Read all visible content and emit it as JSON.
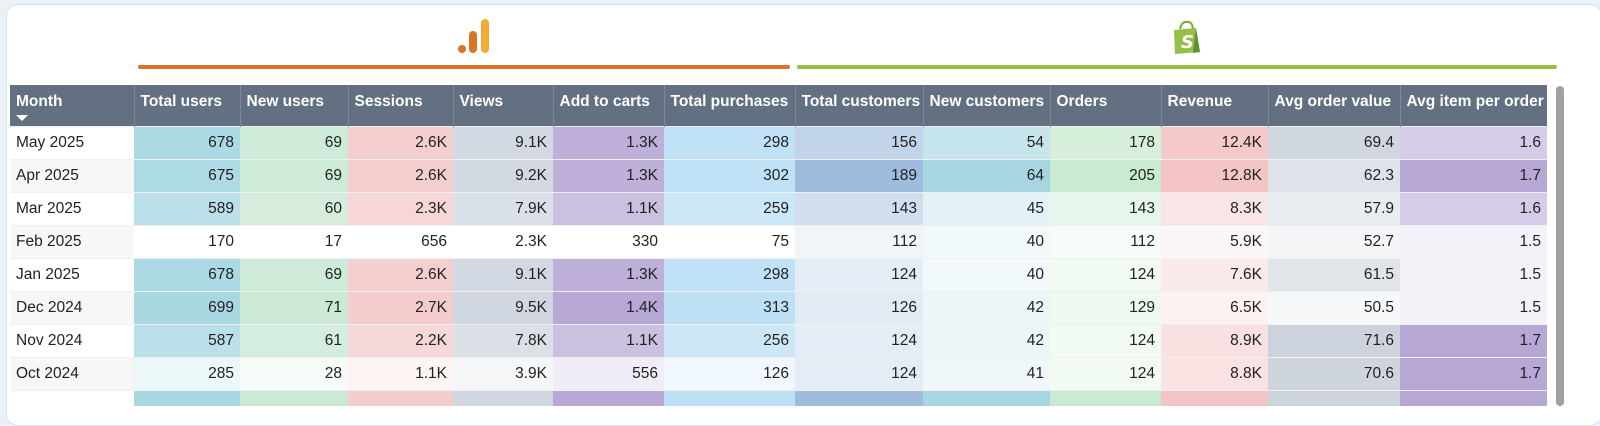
{
  "sources": [
    {
      "name": "google-analytics",
      "icon": "google-analytics-icon",
      "color": "#d97427"
    },
    {
      "name": "shopify",
      "icon": "shopify-bag-icon",
      "color": "#95bf47"
    }
  ],
  "table": {
    "columns": [
      {
        "label": "Month",
        "sorted": "desc"
      },
      {
        "label": "Total users",
        "color": "#a9d8e3"
      },
      {
        "label": "New users",
        "color": "#cce9d6"
      },
      {
        "label": "Sessions",
        "color": "#f5cccd"
      },
      {
        "label": "Views",
        "color": "#d0d7e0"
      },
      {
        "label": "Add to carts",
        "color": "#b8a8d5"
      },
      {
        "label": "Total purchases",
        "color": "#bde0f5"
      },
      {
        "label": "Total customers",
        "color": "#9fbcdc"
      },
      {
        "label": "New customers",
        "color": "#a7d6e2"
      },
      {
        "label": "Orders",
        "color": "#c8ebd1"
      },
      {
        "label": "Revenue",
        "color": "#f4c5c6"
      },
      {
        "label": "Avg order value",
        "color": "#ccd3dc"
      },
      {
        "label": "Avg item per order",
        "color": "#b7a7d5"
      }
    ],
    "rows": [
      [
        "May 2025",
        "678",
        "69",
        "2.6K",
        "9.1K",
        "1.3K",
        "298",
        "156",
        "54",
        "178",
        "12.4K",
        "69.4",
        "1.6"
      ],
      [
        "Apr 2025",
        "675",
        "69",
        "2.6K",
        "9.2K",
        "1.3K",
        "302",
        "189",
        "64",
        "205",
        "12.8K",
        "62.3",
        "1.7"
      ],
      [
        "Mar 2025",
        "589",
        "60",
        "2.3K",
        "7.9K",
        "1.1K",
        "259",
        "143",
        "45",
        "143",
        "8.3K",
        "57.9",
        "1.6"
      ],
      [
        "Feb 2025",
        "170",
        "17",
        "656",
        "2.3K",
        "330",
        "75",
        "112",
        "40",
        "112",
        "5.9K",
        "52.7",
        "1.5"
      ],
      [
        "Jan 2025",
        "678",
        "69",
        "2.6K",
        "9.1K",
        "1.3K",
        "298",
        "124",
        "40",
        "124",
        "7.6K",
        "61.5",
        "1.5"
      ],
      [
        "Dec 2024",
        "699",
        "71",
        "2.7K",
        "9.5K",
        "1.4K",
        "313",
        "126",
        "42",
        "129",
        "6.5K",
        "50.5",
        "1.5"
      ],
      [
        "Nov 2024",
        "587",
        "61",
        "2.2K",
        "7.8K",
        "1.1K",
        "256",
        "124",
        "42",
        "124",
        "8.9K",
        "71.6",
        "1.7"
      ],
      [
        "Oct 2024",
        "285",
        "28",
        "1.1K",
        "3.9K",
        "556",
        "126",
        "124",
        "41",
        "124",
        "8.8K",
        "70.6",
        "1.7"
      ],
      [
        "",
        "",
        "",
        "",
        "",
        "",
        "",
        "",
        "",
        "",
        "",
        "",
        ""
      ]
    ]
  }
}
